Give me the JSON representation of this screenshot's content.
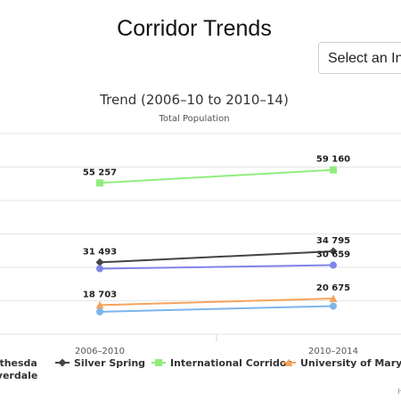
{
  "page": {
    "title": "Corridor Trends"
  },
  "select": {
    "label": "Select an In"
  },
  "chart_data": {
    "type": "line",
    "title": "Trend (2006–10 to 2010–14)",
    "subtitle": "Total Population",
    "categories": [
      "2006–2010",
      "2010–2014"
    ],
    "series": [
      {
        "name": "International Corridor",
        "color": "#90ed7d",
        "marker": "square",
        "values": [
          55257,
          59160
        ],
        "labels": [
          "55 257",
          "59 160"
        ]
      },
      {
        "name": "Silver Spring",
        "color": "#434348",
        "marker": "diamond",
        "values": [
          31493,
          34795
        ],
        "labels": [
          "31 493",
          "34 795"
        ]
      },
      {
        "name": "",
        "color": "#8085e9",
        "marker": "circle",
        "values": [
          29600,
          30659
        ],
        "labels": [
          "",
          "30 659"
        ]
      },
      {
        "name": "University of Marylar",
        "color": "#f7a35c",
        "marker": "triangle",
        "values": [
          18703,
          20675
        ],
        "labels": [
          "18 703",
          "20 675"
        ]
      },
      {
        "name": "",
        "color": "#7cb5ec",
        "marker": "circle",
        "values": [
          16700,
          18400
        ],
        "labels": [
          "",
          ""
        ]
      }
    ],
    "legend": {
      "position": "bottom",
      "items": [
        {
          "line1": "ethesda",
          "line2": "iverdale",
          "color": "",
          "marker": "none"
        },
        {
          "line1": "Silver Spring",
          "line2": "",
          "color": "#434348",
          "marker": "diamond"
        },
        {
          "line1": "International Corridor",
          "line2": "",
          "color": "#90ed7d",
          "marker": "square"
        },
        {
          "line1": "University of Marylar",
          "line2": "",
          "color": "#f7a35c",
          "marker": "triangle"
        }
      ]
    }
  },
  "footer": {
    "partial": "H"
  }
}
